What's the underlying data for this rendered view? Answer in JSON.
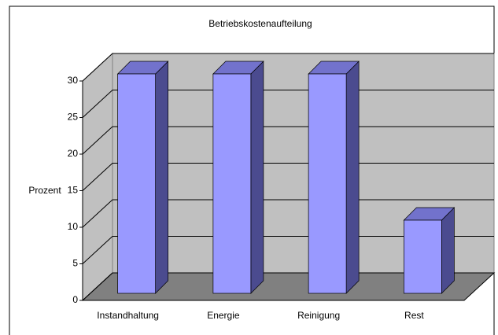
{
  "chart_data": {
    "type": "bar",
    "title": "Betriebskostenaufteilung",
    "y_label": "Prozent",
    "categories": [
      "Instandhaltung",
      "Energie",
      "Reinigung",
      "Rest"
    ],
    "values": [
      30,
      30,
      30,
      10
    ],
    "color": "#9999ff",
    "ylim": [
      0,
      30
    ],
    "yticks": [
      0,
      5,
      10,
      15,
      20,
      25,
      30
    ],
    "grid": true
  }
}
